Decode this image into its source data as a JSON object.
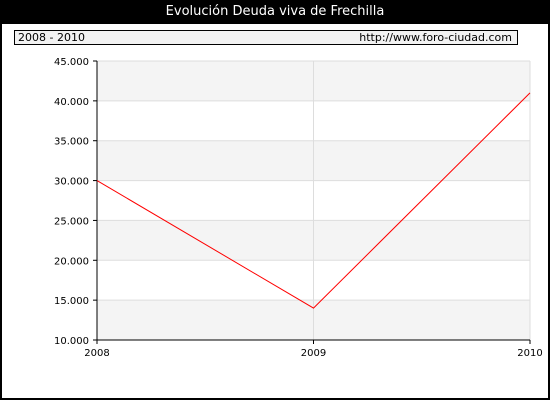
{
  "header": {
    "title": "Evolución Deuda viva de Frechilla"
  },
  "info_bar": {
    "range": "2008 - 2010",
    "url": "http://www.foro-ciudad.com"
  },
  "colors": {
    "series": "#ff0000",
    "band": "#f4f4f4",
    "grid": "#dddddd"
  },
  "chart_data": {
    "type": "line",
    "title": "Evolución Deuda viva de Frechilla",
    "xlabel": "",
    "ylabel": "",
    "x": [
      2008,
      2009,
      2010
    ],
    "x_tick_labels": [
      "2008",
      "2009",
      "2010"
    ],
    "y_tick_labels": [
      "45.000",
      "40.000",
      "35.000",
      "30.000",
      "25.000",
      "20.000",
      "15.000",
      "10.000"
    ],
    "y_ticks": [
      45000,
      40000,
      35000,
      30000,
      25000,
      20000,
      15000,
      10000
    ],
    "ylim": [
      10000,
      45000
    ],
    "xlim": [
      2008,
      2010
    ],
    "grid": true,
    "series": [
      {
        "values": [
          30000,
          14000,
          41000
        ]
      }
    ]
  }
}
